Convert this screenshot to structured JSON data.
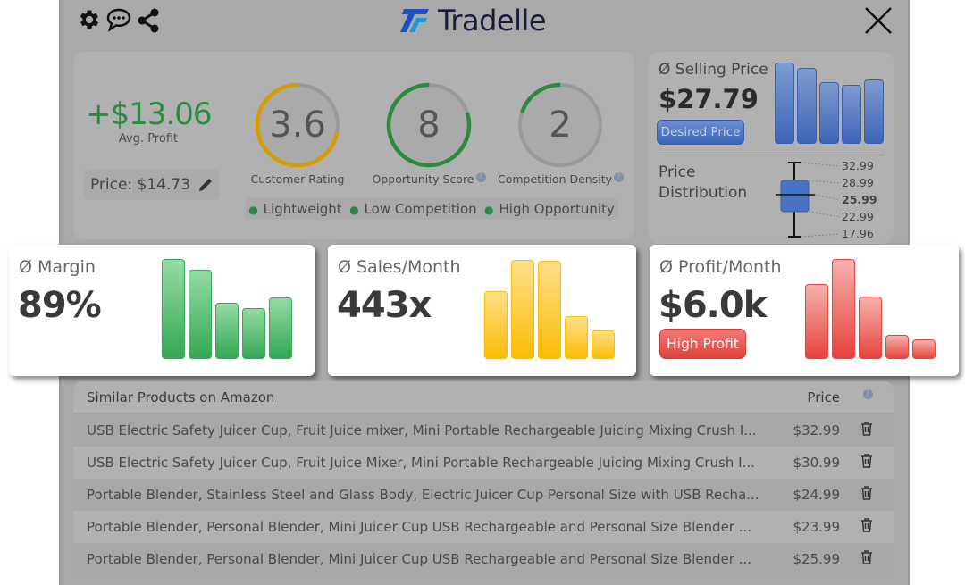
{
  "header": {
    "brand": "Tradelle",
    "icons": [
      "gear-icon",
      "chat-icon",
      "share-icon",
      "close-icon"
    ]
  },
  "summary": {
    "avg_profit": "+$13.06",
    "avg_profit_label": "Avg. Profit",
    "price": "Price: $14.73",
    "gauges": [
      {
        "value": "3.6",
        "label": "Customer Rating",
        "fraction": 0.72,
        "color": "#d39e00",
        "help": false
      },
      {
        "value": "8",
        "label": "Opportunity Score",
        "fraction": 0.8,
        "color": "#2b8a3e",
        "help": true
      },
      {
        "value": "2",
        "label": "Competition Density",
        "fraction": 0.2,
        "color": "#2b8a3e",
        "help": true
      }
    ],
    "tags": [
      "Lightweight",
      "Low Competition",
      "High Opportunity"
    ]
  },
  "selling_price": {
    "title": "Ø Selling Price",
    "value": "$27.79",
    "button": "Desired Price",
    "bars": [
      91,
      85,
      69,
      66,
      72
    ],
    "color": "#3d64b8"
  },
  "distribution": {
    "title_line1": "Price",
    "title_line2": "Distribution",
    "values": [
      "32.99",
      "28.99",
      "25.99",
      "22.99",
      "17.96"
    ]
  },
  "highlights": [
    {
      "title": "Ø Margin",
      "value": "89%",
      "bars": [
        112,
        100,
        63,
        57,
        69
      ],
      "color_top": "#94dba4",
      "color_bottom": "#34a853"
    },
    {
      "title": "Ø Sales/Month",
      "value": "443x",
      "bars": [
        76,
        111,
        110,
        48,
        32
      ],
      "color_top": "#ffe08a",
      "color_bottom": "#fbbc04"
    },
    {
      "title": "Ø Profit/Month",
      "value": "$6.0k",
      "badge": "High Profit",
      "bars": [
        84,
        112,
        70,
        27,
        22
      ],
      "color_top": "#f6b1ae",
      "color_bottom": "#e8433c"
    }
  ],
  "table": {
    "col_name": "Similar Products on Amazon",
    "col_price": "Price",
    "rows": [
      {
        "name": "USB Electric Safety Juicer Cup, Fruit Juice mixer, Mini Portable Rechargeable Juicing Mixing Crush I...",
        "price": "$32.99"
      },
      {
        "name": "USB Electric Safety Juicer Cup, Fruit Juice Mixer, Mini Portable Rechargeable Juicing Mixing Crush I...",
        "price": "$30.99"
      },
      {
        "name": "Portable Blender, Stainless Steel and Glass Body, Electric Juicer Cup Personal Size with USB Recha...",
        "price": "$24.99"
      },
      {
        "name": "Portable Blender, Personal Blender, Mini Juicer Cup USB Rechargeable and Personal Size Blender ...",
        "price": "$23.99"
      },
      {
        "name": "Portable Blender, Personal Blender, Mini Juicer Cup USB Rechargeable and Personal Size Blender ...",
        "price": "$25.99"
      }
    ]
  }
}
